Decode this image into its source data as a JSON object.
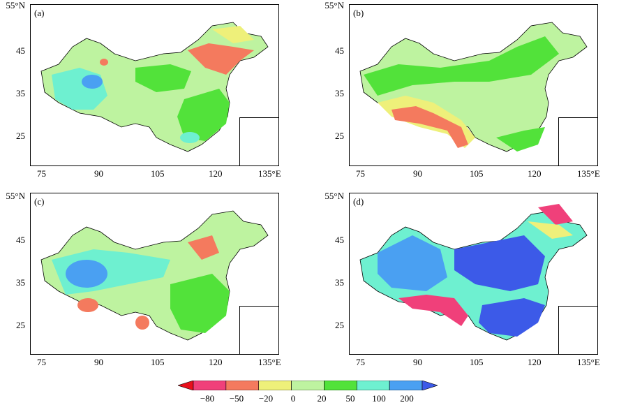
{
  "panels": [
    {
      "label": "(a)",
      "y_top": "55°N",
      "x_last": "135°E"
    },
    {
      "label": "(b)",
      "y_top": "55°N",
      "x_last": "135°E"
    },
    {
      "label": "(c)",
      "y_top": "55°N",
      "x_last": "135°E"
    },
    {
      "label": "(d)",
      "y_top": "55°N",
      "x_last": "135°E"
    }
  ],
  "axes": {
    "x_ticks": [
      "75",
      "90",
      "105",
      "120"
    ],
    "y_ticks": [
      "45",
      "35",
      "25"
    ]
  },
  "colorbar": {
    "labels": [
      "−80",
      "−50",
      "−20",
      "0",
      "20",
      "50",
      "100",
      "200"
    ],
    "colors": [
      "#e8101c",
      "#f0407a",
      "#f47a5e",
      "#eef07a",
      "#bef3a0",
      "#52e23a",
      "#6ef0d0",
      "#4aa0f2",
      "#3c5ae8"
    ]
  }
}
